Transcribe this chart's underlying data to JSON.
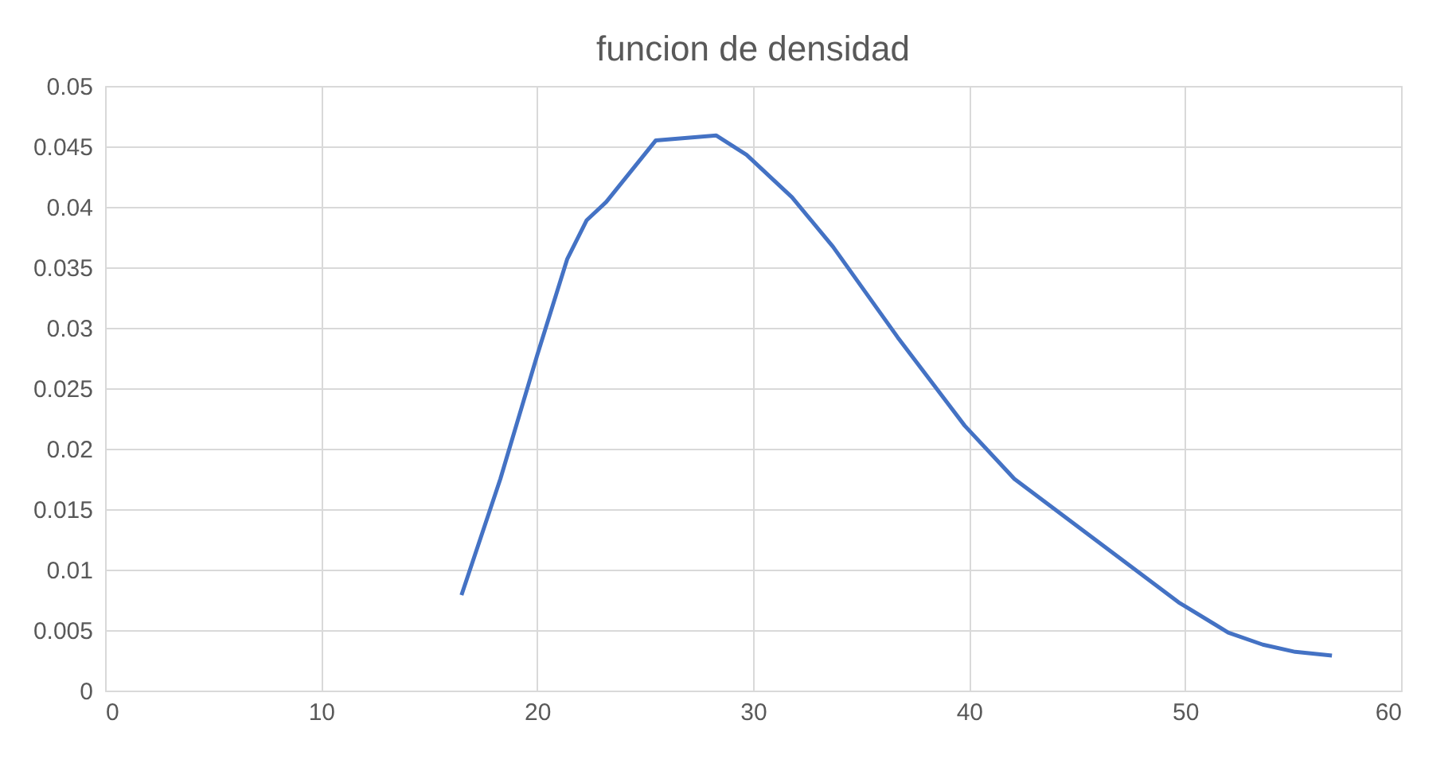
{
  "chart_data": {
    "type": "line",
    "title": "funcion de densidad",
    "x": [
      16.5,
      18.3,
      20.0,
      21.4,
      22.3,
      23.2,
      25.5,
      28.3,
      29.7,
      31.8,
      33.7,
      36.7,
      39.8,
      42.1,
      45.9,
      49.7,
      52.0,
      53.6,
      55.1,
      56.8
    ],
    "series": [
      {
        "color": "#4472c4",
        "values": [
          0.0079,
          0.0175,
          0.0277,
          0.0357,
          0.0389,
          0.0404,
          0.0455,
          0.0459,
          0.0443,
          0.0408,
          0.0367,
          0.0292,
          0.0219,
          0.0175,
          0.0124,
          0.0073,
          0.0048,
          0.0038,
          0.0032,
          0.0029
        ]
      }
    ],
    "xlim": [
      0,
      60
    ],
    "xticks": [
      0,
      10,
      20,
      30,
      40,
      50,
      60
    ],
    "ylim": [
      0,
      0.05
    ],
    "yticks": [
      0,
      0.005,
      0.01,
      0.015,
      0.02,
      0.025,
      0.03,
      0.035,
      0.04,
      0.045,
      0.05
    ],
    "grid": true,
    "marker": "none",
    "line_style": "solid"
  }
}
